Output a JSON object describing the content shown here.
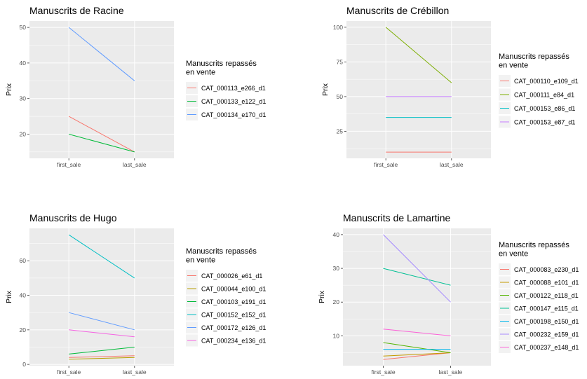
{
  "chart_data": [
    {
      "type": "line",
      "title": "Manuscrits de Racine",
      "xlabel": "",
      "ylabel": "Prix",
      "categories": [
        "first_sale",
        "last_sale"
      ],
      "ylim": [
        13.2,
        51.8
      ],
      "yticks": [
        20,
        30,
        40,
        50
      ],
      "legend_title": [
        "Manuscrits repassés",
        " en vente"
      ],
      "series": [
        {
          "name": "CAT_000113_e266_d1",
          "color": "#F8766D",
          "values": [
            25,
            15
          ]
        },
        {
          "name": "CAT_000133_e122_d1",
          "color": "#00BA38",
          "values": [
            20,
            15
          ]
        },
        {
          "name": "CAT_000134_e170_d1",
          "color": "#619CFF",
          "values": [
            50,
            35
          ]
        }
      ]
    },
    {
      "type": "line",
      "title": "Manuscrits de Crébillon",
      "xlabel": "",
      "ylabel": "Prix",
      "categories": [
        "first_sale",
        "last_sale"
      ],
      "ylim": [
        5.5,
        104.5
      ],
      "yticks": [
        25,
        50,
        75,
        100
      ],
      "legend_title": [
        "Manuscrits repassés",
        " en vente"
      ],
      "series": [
        {
          "name": "CAT_000110_e109_d1",
          "color": "#F8766D",
          "values": [
            10,
            10
          ]
        },
        {
          "name": "CAT_000111_e84_d1",
          "color": "#7CAE00",
          "values": [
            100,
            60
          ]
        },
        {
          "name": "CAT_000153_e86_d1",
          "color": "#00BFC4",
          "values": [
            35,
            35
          ]
        },
        {
          "name": "CAT_000153_e87_d1",
          "color": "#C77CFF",
          "values": [
            50,
            50
          ]
        }
      ]
    },
    {
      "type": "line",
      "title": "Manuscrits de Hugo",
      "xlabel": "",
      "ylabel": "Prix",
      "categories": [
        "first_sale",
        "last_sale"
      ],
      "ylim": [
        -0.75,
        78.75
      ],
      "yticks": [
        0,
        20,
        40,
        60
      ],
      "legend_title": [
        "Manuscrits repassés",
        " en vente"
      ],
      "series": [
        {
          "name": "CAT_000026_e61_d1",
          "color": "#F8766D",
          "values": [
            4,
            5
          ]
        },
        {
          "name": "CAT_000044_e100_d1",
          "color": "#B79F00",
          "values": [
            3,
            4
          ]
        },
        {
          "name": "CAT_000103_e191_d1",
          "color": "#00BA38",
          "values": [
            6,
            10
          ]
        },
        {
          "name": "CAT_000152_e152_d1",
          "color": "#00BFC4",
          "values": [
            75,
            50
          ]
        },
        {
          "name": "CAT_000172_e126_d1",
          "color": "#619CFF",
          "values": [
            30,
            20
          ]
        },
        {
          "name": "CAT_000234_e136_d1",
          "color": "#F564E3",
          "values": [
            20,
            16
          ]
        }
      ]
    },
    {
      "type": "line",
      "title": "Manuscrits de Lamartine",
      "xlabel": "",
      "ylabel": "Prix",
      "categories": [
        "first_sale",
        "last_sale"
      ],
      "ylim": [
        1.15,
        41.85
      ],
      "yticks": [
        10,
        20,
        30,
        40
      ],
      "legend_title": [
        "Manuscrits repassés",
        " en vente"
      ],
      "series": [
        {
          "name": "CAT_000083_e230_d1",
          "color": "#F8766D",
          "values": [
            3,
            5
          ]
        },
        {
          "name": "CAT_000088_e101_d1",
          "color": "#C49A00",
          "values": [
            4,
            5
          ]
        },
        {
          "name": "CAT_000122_e118_d1",
          "color": "#53B400",
          "values": [
            8,
            5
          ]
        },
        {
          "name": "CAT_000147_e115_d1",
          "color": "#00C094",
          "values": [
            30,
            25
          ]
        },
        {
          "name": "CAT_000198_e150_d1",
          "color": "#00B6EB",
          "values": [
            6,
            6
          ]
        },
        {
          "name": "CAT_000232_e159_d1",
          "color": "#A58AFF",
          "values": [
            40,
            20
          ]
        },
        {
          "name": "CAT_000237_e148_d1",
          "color": "#FB61D7",
          "values": [
            12,
            10
          ]
        }
      ]
    }
  ]
}
